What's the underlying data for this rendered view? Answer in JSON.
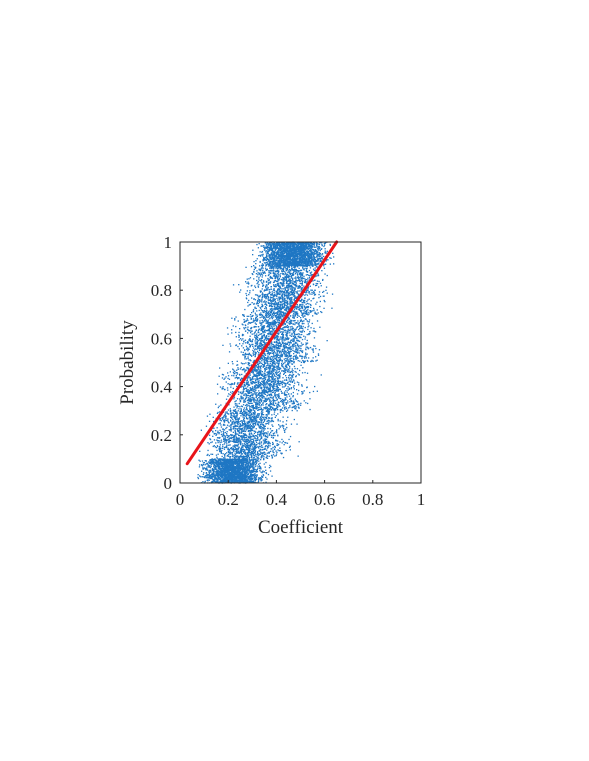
{
  "chart_data": {
    "type": "scatter",
    "xlabel": "Coefficient",
    "ylabel": "Probability",
    "xlim": [
      0,
      1
    ],
    "ylim": [
      0,
      1
    ],
    "xticks": [
      "0",
      "0.2",
      "0.4",
      "0.6",
      "0.8",
      "1"
    ],
    "yticks": [
      "0",
      "0.2",
      "0.4",
      "0.6",
      "0.8",
      "1"
    ],
    "grid": false,
    "colors": {
      "points": "#1f77c4",
      "fit_line": "#e8141a",
      "axes": "#262626"
    },
    "series": [
      {
        "kind": "points",
        "density_bands": [
          {
            "y": [
              0.0,
              0.1
            ],
            "x_center": 0.22,
            "x_spread": 0.1,
            "weight": 3
          },
          {
            "y": [
              0.1,
              0.3
            ],
            "x_center": 0.28,
            "x_spread": 0.13,
            "weight": 2
          },
          {
            "y": [
              0.3,
              0.5
            ],
            "x_center": 0.35,
            "x_spread": 0.14,
            "weight": 2
          },
          {
            "y": [
              0.5,
              0.7
            ],
            "x_center": 0.4,
            "x_spread": 0.14,
            "weight": 2
          },
          {
            "y": [
              0.7,
              0.9
            ],
            "x_center": 0.44,
            "x_spread": 0.13,
            "weight": 2
          },
          {
            "y": [
              0.9,
              1.0
            ],
            "x_center": 0.47,
            "x_spread": 0.11,
            "weight": 3
          }
        ]
      },
      {
        "kind": "fit-line",
        "x": [
          0.03,
          0.65
        ],
        "y": [
          0.08,
          1.0
        ]
      }
    ]
  }
}
